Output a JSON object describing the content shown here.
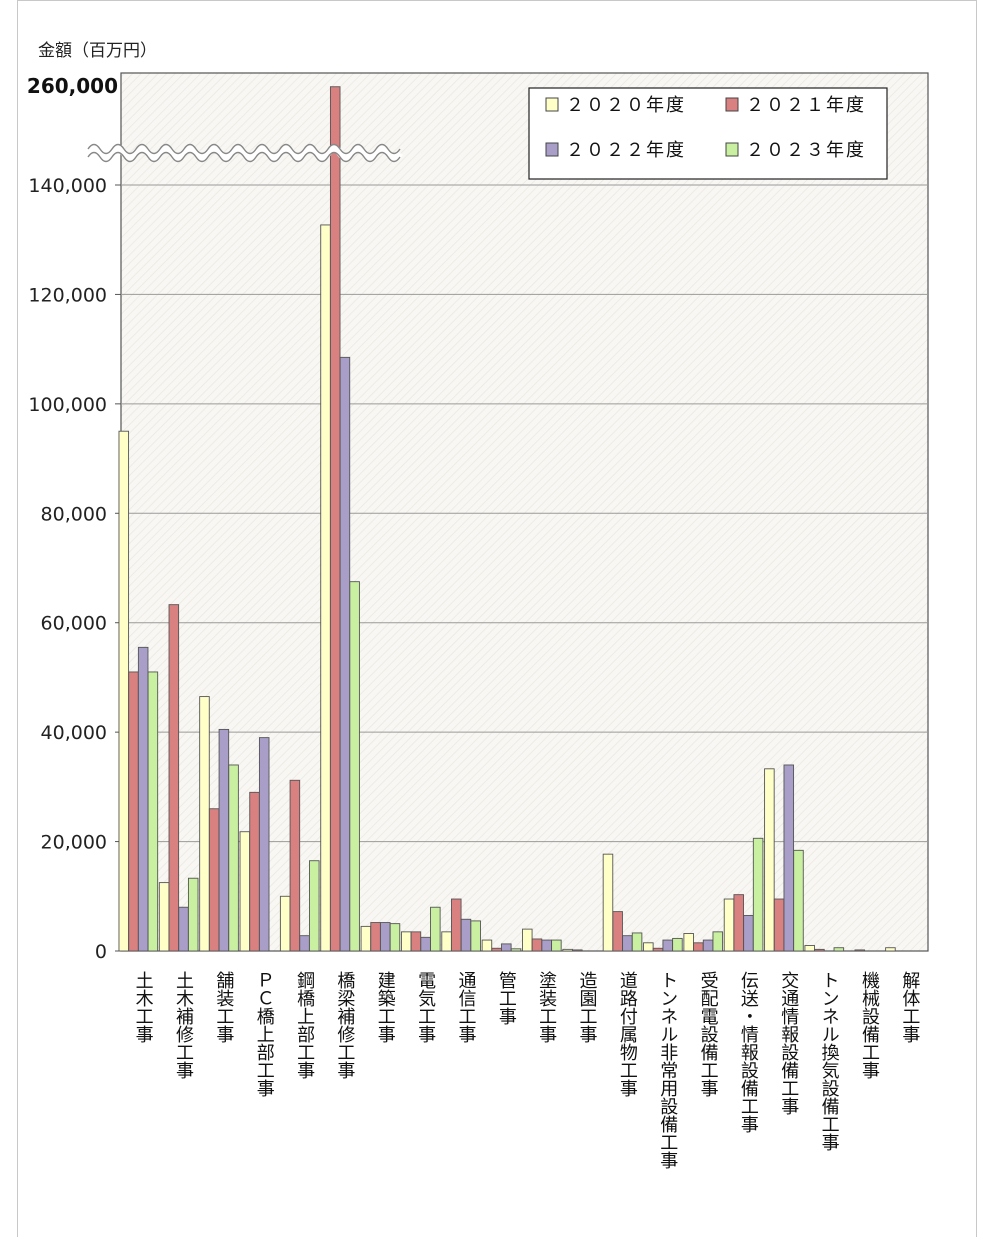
{
  "chart_data": {
    "type": "bar",
    "ylabel": "金額（百万円）",
    "y_ticks": [
      "0",
      "20,000",
      "40,000",
      "60,000",
      "80,000",
      "100,000",
      "120,000",
      "140,000"
    ],
    "y_break_label": "260,000",
    "ylim": [
      0,
      150000
    ],
    "axis_break": {
      "from": 145000,
      "to": 255000
    },
    "grid": true,
    "legend_position": "top-right",
    "categories": [
      "土木工事",
      "土木補修工事",
      "舗装工事",
      "ＰＣ橋上部工事",
      "鋼橋上部工事",
      "橋梁補修工事",
      "建築工事",
      "電気工事",
      "通信工事",
      "管工事",
      "塗装工事",
      "造園工事",
      "道路付属物工事",
      "トンネル非常用設備工事",
      "受配電設備工事",
      "伝送・情報設備工事",
      "交通情報設備工事",
      "トンネル換気設備工事",
      "機械設備工事",
      "解体工事"
    ],
    "series": [
      {
        "name": "２０２０年度",
        "color": "#ffffc8",
        "values": [
          95000,
          12500,
          46500,
          21800,
          10000,
          132700,
          4500,
          3500,
          3500,
          2000,
          4000,
          300,
          17700,
          1500,
          3200,
          9500,
          33300,
          1000,
          0,
          600
        ]
      },
      {
        "name": "２０２１年度",
        "color": "#d98080",
        "values": [
          51000,
          63300,
          26000,
          29000,
          31200,
          259000,
          5200,
          3500,
          9500,
          500,
          2200,
          200,
          7200,
          500,
          1500,
          10300,
          9500,
          300,
          200,
          0
        ]
      },
      {
        "name": "２０２２年度",
        "color": "#a89ec8",
        "values": [
          55500,
          8000,
          40500,
          39000,
          2800,
          108500,
          5200,
          2500,
          5800,
          1300,
          2000,
          0,
          2800,
          2000,
          2000,
          6500,
          34000,
          0,
          0,
          0
        ]
      },
      {
        "name": "２０２３年度",
        "color": "#c8f0a0",
        "values": [
          51000,
          13300,
          34000,
          0,
          16500,
          67500,
          5000,
          8000,
          5500,
          400,
          2000,
          0,
          3300,
          2300,
          3500,
          20600,
          18400,
          600,
          0,
          0
        ]
      }
    ]
  }
}
